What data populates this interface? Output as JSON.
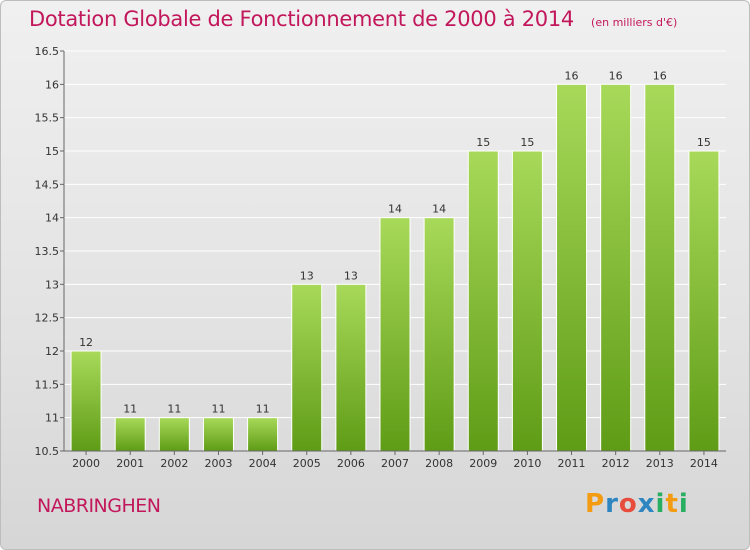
{
  "chart_data": {
    "type": "bar",
    "title": "Dotation Globale de Fonctionnement de 2000 à 2014",
    "unit": "(en milliers d'€)",
    "categories": [
      "2000",
      "2001",
      "2002",
      "2003",
      "2004",
      "2005",
      "2006",
      "2007",
      "2008",
      "2009",
      "2010",
      "2011",
      "2012",
      "2013",
      "2014"
    ],
    "values": [
      12,
      11,
      11,
      11,
      11,
      13,
      13,
      14,
      14,
      15,
      15,
      16,
      16,
      16,
      15
    ],
    "ylim": [
      10.5,
      16.5
    ],
    "yticks": [
      10.5,
      11,
      11.5,
      12,
      12.5,
      13,
      13.5,
      14,
      14.5,
      15,
      15.5,
      16,
      16.5
    ],
    "xlabel": "",
    "ylabel": "",
    "grid": true,
    "legend": "none"
  },
  "commune": "NABRINGHEN",
  "logo": {
    "letters": [
      "P",
      "r",
      "o",
      "x",
      "i",
      "t",
      "i"
    ],
    "colors": [
      "#f39c12",
      "#2e86c1",
      "#e74c3c",
      "#2e86c1",
      "#27ae60",
      "#f39c12",
      "#27ae60"
    ]
  },
  "colors": {
    "bar_top": "#a8d95a",
    "bar_bottom": "#5f9c16",
    "title": "#c2185b",
    "grid": "#ffffff"
  }
}
